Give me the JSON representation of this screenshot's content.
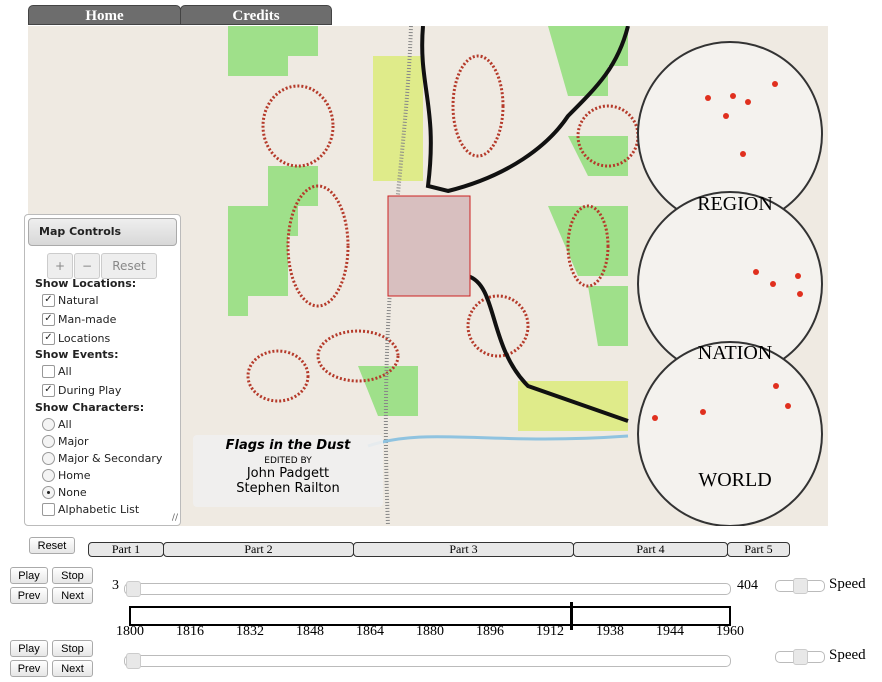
{
  "nav": {
    "tabs": [
      "Home",
      "Credits"
    ]
  },
  "map": {
    "title": "Flags in the Dust",
    "edited_by": "EDITED BY",
    "editors": [
      "John Padgett",
      "Stephen Railton"
    ],
    "globes": [
      "REGION",
      "NATION",
      "WORLD"
    ],
    "colors": {
      "background": "#efeae2",
      "vegetation": "#9fe08a",
      "roads": "#111111",
      "markers": "#e0301e"
    }
  },
  "controls": {
    "title": "Map Controls",
    "zoom_in": "+",
    "zoom_out": "−",
    "reset": "Reset",
    "locations_label": "Show Locations:",
    "locations": [
      {
        "label": "Natural",
        "checked": true
      },
      {
        "label": "Man-made",
        "checked": true
      },
      {
        "label": "Locations",
        "checked": true
      }
    ],
    "events_label": "Show Events:",
    "events": [
      {
        "label": "All",
        "checked": false
      },
      {
        "label": "During Play",
        "checked": true
      }
    ],
    "characters_label": "Show Characters:",
    "characters": [
      {
        "label": "All"
      },
      {
        "label": "Major"
      },
      {
        "label": "Major & Secondary"
      },
      {
        "label": "Home"
      },
      {
        "label": "None"
      }
    ],
    "characters_selected": "None",
    "alphabetic": {
      "label": "Alphabetic List",
      "checked": false
    }
  },
  "timeline": {
    "reset": "Reset",
    "parts": [
      "Part 1",
      "Part 2",
      "Part 3",
      "Part 4",
      "Part 5"
    ],
    "play": "Play",
    "stop": "Stop",
    "prev": "Prev",
    "next": "Next",
    "page_min": "3",
    "page_max": "404",
    "speed": "Speed",
    "years": [
      "1800",
      "1816",
      "1832",
      "1848",
      "1864",
      "1880",
      "1896",
      "1912",
      "1938",
      "1944",
      "1960"
    ],
    "marker_fraction": 0.735
  }
}
